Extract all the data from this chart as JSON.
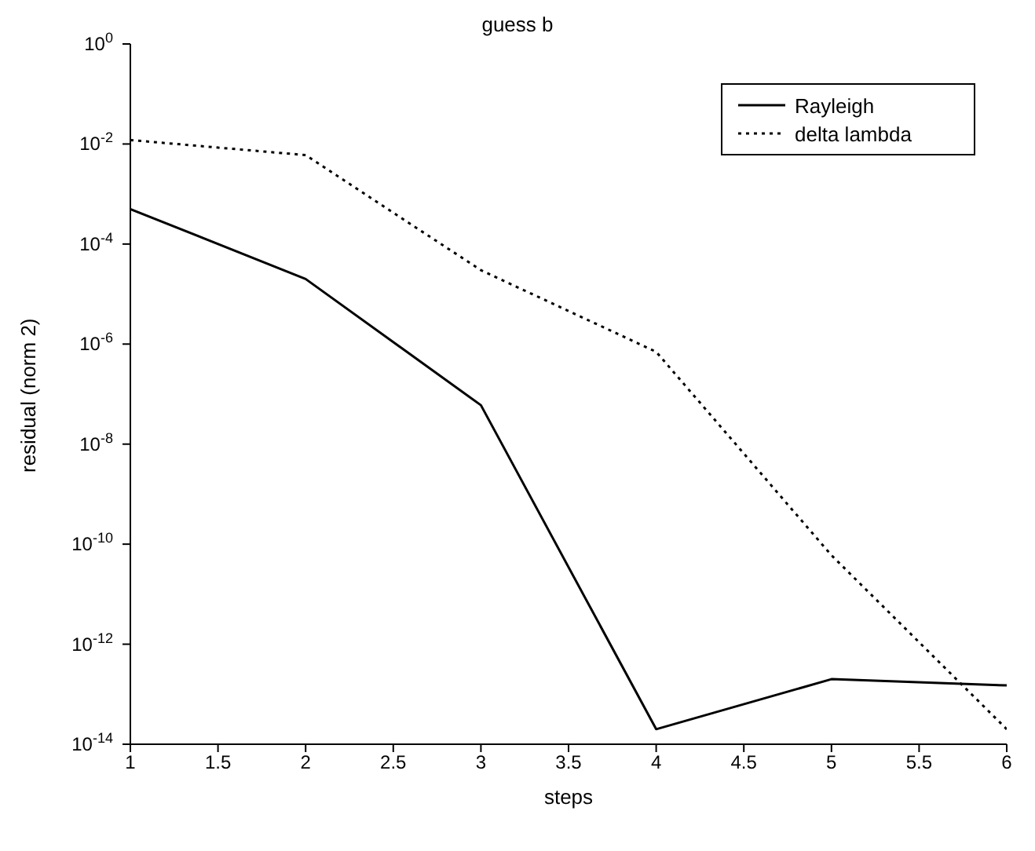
{
  "chart_data": {
    "type": "line",
    "title": "guess b",
    "xlabel": "steps",
    "ylabel": "residual (norm 2)",
    "x": [
      1,
      2,
      3,
      4,
      5,
      6
    ],
    "series": [
      {
        "name": "Rayleigh",
        "color": "#000000",
        "line_style": "solid",
        "values": [
          0.0005,
          2e-05,
          6e-08,
          2e-14,
          2e-13,
          1.5e-13
        ]
      },
      {
        "name": "delta lambda",
        "color": "#000000",
        "line_style": "dotted",
        "values": [
          0.012,
          0.006,
          3e-05,
          7e-07,
          6e-11,
          2e-14
        ]
      }
    ],
    "log": "y",
    "xlim": [
      1,
      6
    ],
    "xticks": [
      1,
      1.5,
      2,
      2.5,
      3,
      3.5,
      4,
      4.5,
      5,
      5.5,
      6
    ],
    "ylim": [
      1e-14,
      1
    ],
    "yticks": [
      {
        "value": 1,
        "label": "10$^{0}$"
      },
      {
        "value": 0.01,
        "label": "10$^{-2}$"
      },
      {
        "value": 0.0001,
        "label": "10$^{-4}$"
      },
      {
        "value": 1e-06,
        "label": "10$^{-6}$"
      },
      {
        "value": 1e-08,
        "label": "10$^{-8}$"
      },
      {
        "value": 1e-10,
        "label": "10$^{-10}$"
      },
      {
        "value": 1e-12,
        "label": "10$^{-12}$"
      },
      {
        "value": 1e-14,
        "label": "10$^{-14}$"
      }
    ],
    "grid": false,
    "legend": "top right",
    "marker": "none"
  }
}
